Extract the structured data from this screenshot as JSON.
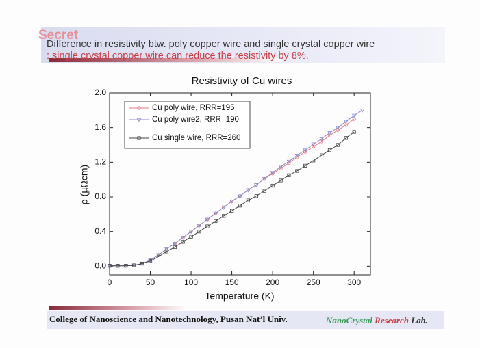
{
  "header": {
    "stamp": "Secret",
    "line1": "Difference in resistivity btw. poly copper wire and single crystal copper wire",
    "line2": ": single crystal copper wire can reduce the resistivity by 8%."
  },
  "chart_data": {
    "type": "line",
    "title": "Resistivity of Cu wires",
    "xlabel": "Temperature (K)",
    "ylabel": "ρ (µΩcm)",
    "xlim": [
      0,
      320
    ],
    "ylim": [
      -0.1,
      2.0
    ],
    "xticks": [
      0,
      50,
      100,
      150,
      200,
      250,
      300
    ],
    "yticks": [
      {
        "value": 0,
        "label": "0.0"
      },
      {
        "value": 0.4,
        "label": "0.4"
      },
      {
        "value": 0.8,
        "label": "0.8"
      },
      {
        "value": 1.2,
        "label": "1.2"
      },
      {
        "value": 1.6,
        "label": "1.6"
      },
      {
        "value": 2.0,
        "label": "2.0"
      }
    ],
    "legend": "upper left",
    "series": [
      {
        "name": "Cu poly wire, RRR=195",
        "color": "#e07a86",
        "marker": "circle",
        "x": [
          0,
          10,
          20,
          30,
          40,
          50,
          60,
          70,
          80,
          90,
          100,
          110,
          120,
          130,
          140,
          150,
          160,
          170,
          180,
          190,
          200,
          210,
          220,
          230,
          240,
          250,
          260,
          270,
          280,
          290,
          300
        ],
        "values": [
          0.005,
          0.005,
          0.006,
          0.01,
          0.03,
          0.07,
          0.13,
          0.2,
          0.26,
          0.33,
          0.4,
          0.47,
          0.54,
          0.61,
          0.68,
          0.75,
          0.81,
          0.88,
          0.94,
          1.01,
          1.07,
          1.13,
          1.19,
          1.26,
          1.32,
          1.38,
          1.44,
          1.51,
          1.57,
          1.63,
          1.7
        ]
      },
      {
        "name": "Cu poly wire2, RRR=190",
        "color": "#8a8ac4",
        "marker": "triangle-down",
        "x": [
          0,
          10,
          20,
          30,
          40,
          50,
          60,
          70,
          80,
          90,
          100,
          110,
          120,
          130,
          140,
          150,
          160,
          170,
          180,
          190,
          200,
          210,
          220,
          230,
          240,
          250,
          260,
          270,
          280,
          290,
          300,
          310
        ],
        "values": [
          0.005,
          0.005,
          0.006,
          0.01,
          0.03,
          0.07,
          0.13,
          0.2,
          0.26,
          0.33,
          0.4,
          0.47,
          0.54,
          0.61,
          0.68,
          0.75,
          0.81,
          0.88,
          0.94,
          1.01,
          1.08,
          1.15,
          1.21,
          1.28,
          1.34,
          1.41,
          1.47,
          1.54,
          1.6,
          1.67,
          1.74,
          1.8
        ]
      },
      {
        "name": "Cu single wire, RRR=260",
        "color": "#444444",
        "marker": "square",
        "x": [
          0,
          10,
          20,
          30,
          40,
          50,
          60,
          70,
          80,
          90,
          100,
          110,
          120,
          130,
          140,
          150,
          160,
          170,
          180,
          190,
          200,
          210,
          220,
          230,
          240,
          250,
          260,
          270,
          280,
          290,
          300
        ],
        "values": [
          0.005,
          0.005,
          0.006,
          0.01,
          0.03,
          0.06,
          0.11,
          0.17,
          0.22,
          0.28,
          0.34,
          0.4,
          0.46,
          0.52,
          0.58,
          0.64,
          0.7,
          0.76,
          0.81,
          0.87,
          0.93,
          0.99,
          1.05,
          1.1,
          1.16,
          1.22,
          1.28,
          1.34,
          1.4,
          1.48,
          1.55
        ]
      }
    ]
  },
  "footer": {
    "college": "College of Nanoscience and Nanotechnology, Pusan Nat’l Univ.",
    "lab": [
      "NanoCrystal",
      "Research",
      "Lab."
    ]
  }
}
